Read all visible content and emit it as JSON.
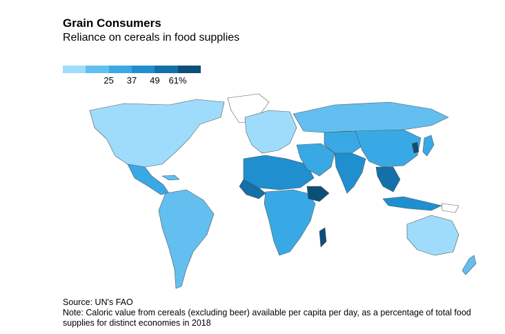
{
  "header": {
    "title": "Grain Consumers",
    "subtitle": "Reliance on cereals in food supplies"
  },
  "legend": {
    "colors": [
      "#9fdcfb",
      "#62bff0",
      "#39a9e6",
      "#1f8fcf",
      "#1370a8",
      "#0c4f78"
    ],
    "labels": [
      "25",
      "37",
      "49",
      "61%"
    ]
  },
  "footer": {
    "source": "Source: UN's FAO",
    "note": "Note: Caloric value from cereals (excluding beer) available per capita per day, as a percentage of total food supplies for distinct economies in 2018"
  }
}
